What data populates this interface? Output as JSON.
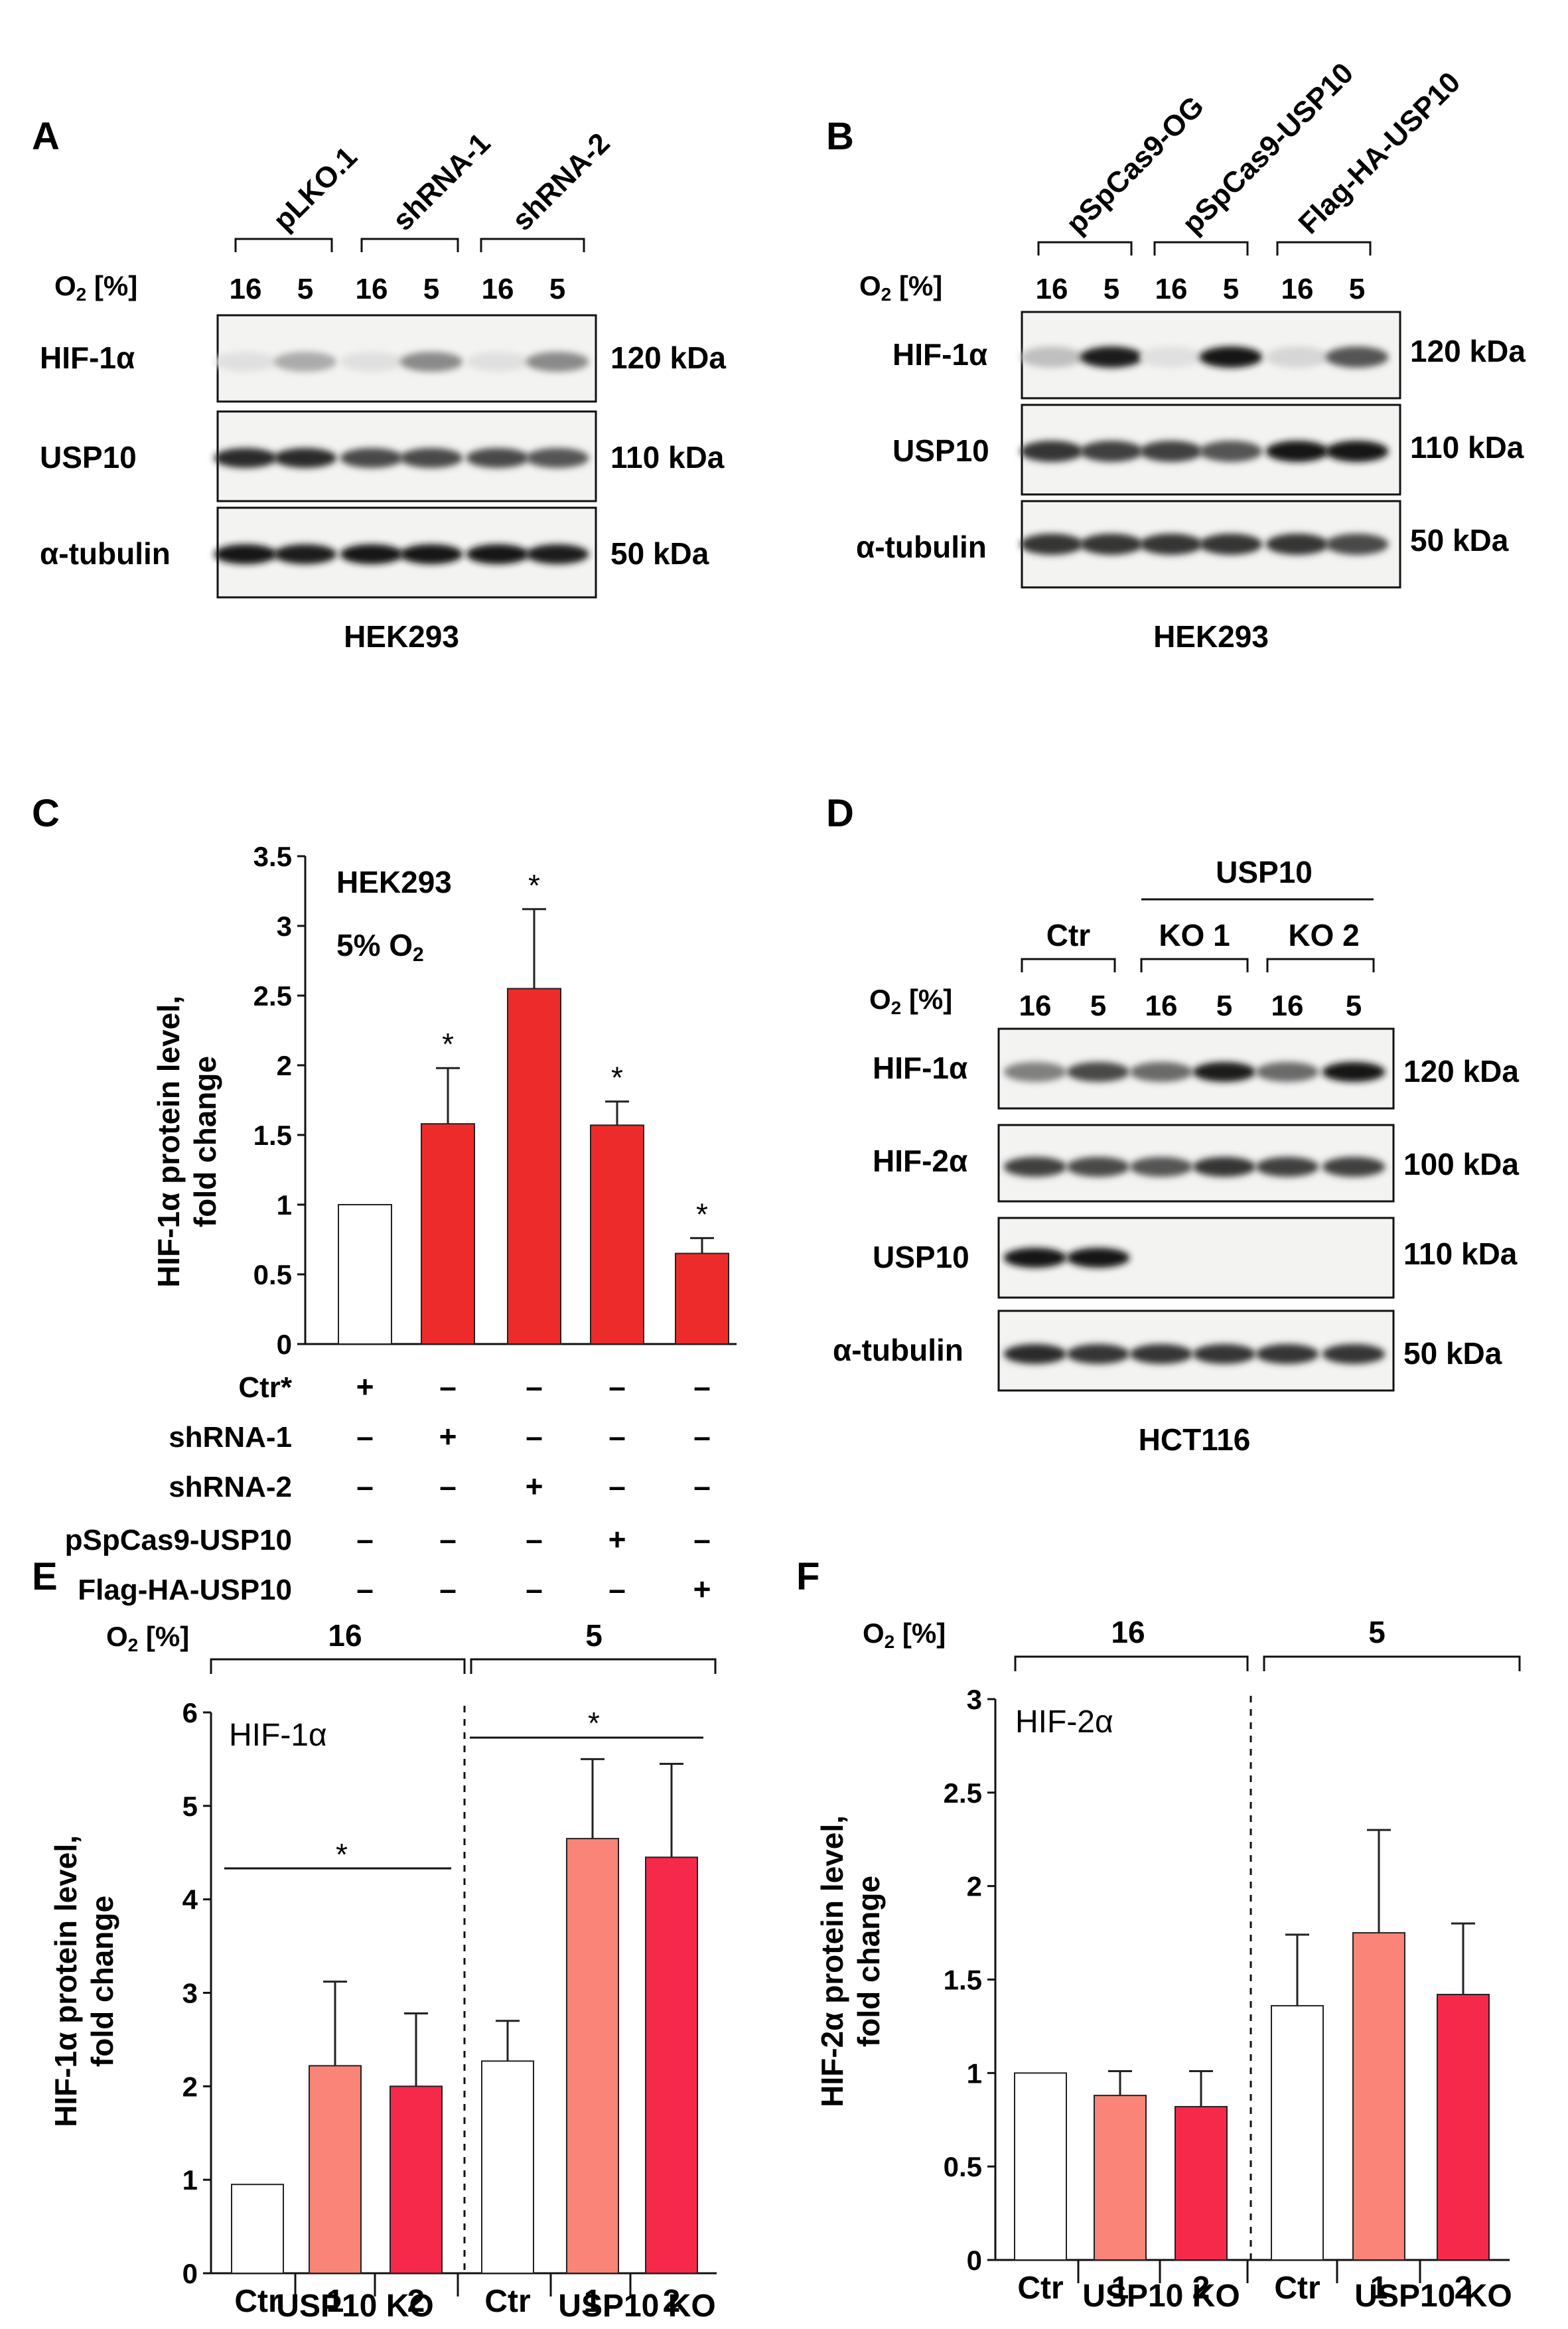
{
  "panels": {
    "A": "A",
    "B": "B",
    "C": "C",
    "D": "D",
    "E": "E",
    "F": "F"
  },
  "blotA": {
    "groups": [
      "pLKO.1",
      "shRNA-1",
      "shRNA-2"
    ],
    "o2_label": "O2 [%]",
    "o2": [
      "16",
      "5",
      "16",
      "5",
      "16",
      "5"
    ],
    "rows": [
      {
        "name": "HIF-1α",
        "kda": "120 kDa",
        "intensity": [
          0.05,
          0.3,
          0.05,
          0.45,
          0.05,
          0.45
        ]
      },
      {
        "name": "USP10",
        "kda": "110 kDa",
        "intensity": [
          0.9,
          0.9,
          0.75,
          0.75,
          0.75,
          0.7
        ]
      },
      {
        "name": "α-tubulin",
        "kda": "50 kDa",
        "intensity": [
          1.0,
          0.95,
          1.0,
          1.0,
          1.0,
          0.95
        ]
      }
    ],
    "cell_line": "HEK293"
  },
  "blotB": {
    "groups": [
      "pSpCas9-OG",
      "pSpCas9-USP10",
      "Flag-HA-USP10"
    ],
    "o2_label": "O2 [%]",
    "o2": [
      "16",
      "5",
      "16",
      "5",
      "16",
      "5"
    ],
    "rows": [
      {
        "name": "HIF-1α",
        "kda": "120 kDa",
        "intensity": [
          0.2,
          0.95,
          0.05,
          1.0,
          0.1,
          0.7
        ]
      },
      {
        "name": "USP10",
        "kda": "110 kDa",
        "intensity": [
          0.85,
          0.8,
          0.8,
          0.7,
          1.0,
          1.0
        ]
      },
      {
        "name": "α-tubulin",
        "kda": "50 kDa",
        "intensity": [
          0.85,
          0.85,
          0.85,
          0.85,
          0.85,
          0.75
        ]
      }
    ],
    "cell_line": "HEK293"
  },
  "blotD": {
    "top_group": "USP10",
    "groups": [
      "Ctr",
      "KO 1",
      "KO 2"
    ],
    "o2_label": "O2 [%]",
    "o2": [
      "16",
      "5",
      "16",
      "5",
      "16",
      "5"
    ],
    "rows": [
      {
        "name": "HIF-1α",
        "kda": "120 kDa",
        "intensity": [
          0.5,
          0.75,
          0.6,
          0.95,
          0.6,
          1.0
        ]
      },
      {
        "name": "HIF-2α",
        "kda": "100 kDa",
        "intensity": [
          0.8,
          0.75,
          0.7,
          0.85,
          0.8,
          0.8
        ]
      },
      {
        "name": "USP10",
        "kda": "110 kDa",
        "intensity": [
          1.0,
          1.0,
          0.0,
          0.0,
          0.0,
          0.0
        ]
      },
      {
        "name": "α-tubulin",
        "kda": "50 kDa",
        "intensity": [
          0.9,
          0.85,
          0.85,
          0.85,
          0.85,
          0.85
        ]
      }
    ],
    "cell_line": "HCT116"
  },
  "chart_data": [
    {
      "panel": "C",
      "type": "bar",
      "ylabel_line1": "HIF-1α protein level,",
      "ylabel_line2": "fold change",
      "annotation1": "HEK293",
      "annotation2": "5% O2",
      "ylim": [
        0,
        3.5
      ],
      "yticks": [
        "0",
        "0.5",
        "1",
        "1.5",
        "2",
        "2.5",
        "3",
        "3.5"
      ],
      "values": [
        1.0,
        1.58,
        2.55,
        1.57,
        0.65
      ],
      "errors": [
        0.0,
        0.4,
        0.57,
        0.17,
        0.11
      ],
      "significance": [
        "",
        "*",
        "*",
        "*",
        "*"
      ],
      "colors": [
        "#ffffff",
        "#ee2b2b",
        "#ee2b2b",
        "#ee2b2b",
        "#ee2b2b"
      ],
      "conditions": {
        "rows": [
          "Ctr*",
          "shRNA-1",
          "shRNA-2",
          "pSpCas9-USP10",
          "Flag-HA-USP10"
        ],
        "matrix": [
          [
            "+",
            "–",
            "–",
            "–",
            "–"
          ],
          [
            "–",
            "+",
            "–",
            "–",
            "–"
          ],
          [
            "–",
            "–",
            "+",
            "–",
            "–"
          ],
          [
            "–",
            "–",
            "–",
            "+",
            "–"
          ],
          [
            "–",
            "–",
            "–",
            "–",
            "+"
          ]
        ]
      }
    },
    {
      "panel": "E",
      "type": "bar",
      "o2_label": "O2 [%]",
      "groups": [
        "16",
        "5"
      ],
      "annotation": "HIF-1α",
      "ylabel_line1": "HIF-1α protein level,",
      "ylabel_line2": "fold change",
      "ylim": [
        0,
        6
      ],
      "yticks": [
        "0",
        "1",
        "2",
        "3",
        "4",
        "5",
        "6"
      ],
      "categories": [
        "Ctr",
        "1",
        "2",
        "Ctr",
        "1",
        "2"
      ],
      "group_labels": [
        "USP10 KO",
        "USP10 KO"
      ],
      "values": [
        0.95,
        2.22,
        2.0,
        2.27,
        4.65,
        4.45
      ],
      "errors": [
        0.0,
        0.9,
        0.78,
        0.43,
        0.85,
        1.0
      ],
      "colors": [
        "#ffffff",
        "#fa8477",
        "#f7294b",
        "#ffffff",
        "#fa8477",
        "#f7294b"
      ],
      "significance": [
        "*",
        "*"
      ]
    },
    {
      "panel": "F",
      "type": "bar",
      "o2_label": "O2 [%]",
      "groups": [
        "16",
        "5"
      ],
      "annotation": "HIF-2α",
      "ylabel_line1": "HIF-2α protein level,",
      "ylabel_line2": "fold change",
      "ylim": [
        0,
        3
      ],
      "yticks": [
        "0",
        "0.5",
        "1",
        "1.5",
        "2",
        "2.5",
        "3"
      ],
      "categories": [
        "Ctr",
        "1",
        "2",
        "Ctr",
        "1",
        "2"
      ],
      "group_labels": [
        "USP10 KO",
        "USP10 KO"
      ],
      "values": [
        1.0,
        0.88,
        0.82,
        1.36,
        1.75,
        1.42
      ],
      "errors": [
        0.0,
        0.13,
        0.19,
        0.38,
        0.55,
        0.38
      ],
      "colors": [
        "#ffffff",
        "#fa8477",
        "#f7294b",
        "#ffffff",
        "#fa8477",
        "#f7294b"
      ]
    }
  ]
}
